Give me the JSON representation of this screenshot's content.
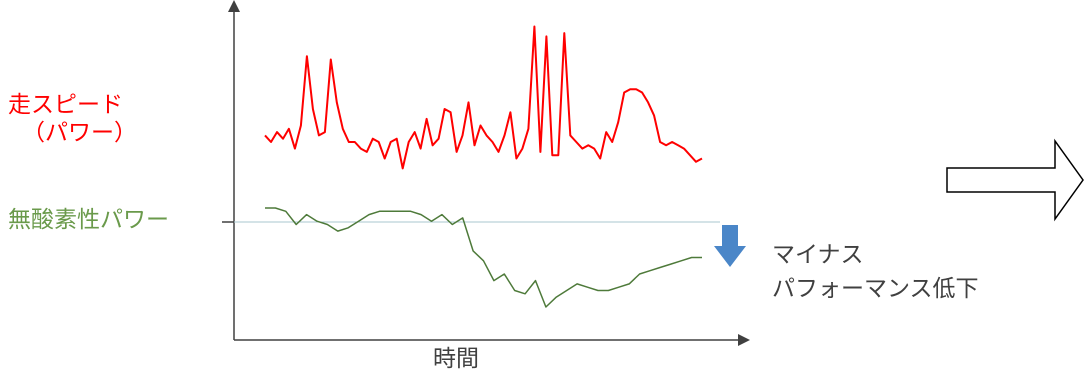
{
  "chart_data": {
    "type": "line",
    "xlabel": "時間",
    "x_ticks": [],
    "y_ticks": [],
    "grid": false,
    "series": [
      {
        "name": "走スピード（パワー）",
        "color": "#ff0000",
        "values": [
          62,
          60,
          63,
          61,
          64,
          58,
          65,
          86,
          70,
          62,
          63,
          85,
          72,
          64,
          60,
          60,
          58,
          57,
          61,
          60,
          55,
          60,
          61,
          52,
          60,
          63,
          58,
          67,
          59,
          61,
          70,
          69,
          57,
          62,
          72,
          59,
          65,
          62,
          60,
          57,
          62,
          69,
          55,
          58,
          64,
          95,
          57,
          92,
          56,
          56,
          93,
          62,
          60,
          58,
          59,
          58,
          55,
          63,
          60,
          66,
          75,
          76,
          76,
          75,
          72,
          68,
          60,
          59,
          60,
          59,
          58,
          56,
          54,
          55
        ]
      },
      {
        "name": "無酸素性パワー",
        "color": "#4e7a3a",
        "values": [
          40,
          40,
          39,
          35,
          38,
          36,
          35,
          33,
          34,
          36,
          38,
          39,
          39,
          39,
          39,
          38,
          36,
          38,
          35,
          37,
          27,
          24,
          18,
          20,
          15,
          14,
          18,
          10,
          13,
          15,
          17,
          16,
          15,
          15,
          16,
          17,
          20,
          21,
          22,
          23,
          24,
          25,
          25
        ]
      }
    ]
  },
  "labels": {
    "speed_line1": "走スピード",
    "speed_line2": "（パワー）",
    "anaerobic": "無酸素性パワー",
    "note_line1": "マイナス",
    "note_line2": "パフォーマンス低下"
  },
  "colors": {
    "arrow_down": "#4a86c8",
    "axis": "#404040",
    "speed": "#ff0000",
    "anaerobic": "#6a9a4b"
  }
}
